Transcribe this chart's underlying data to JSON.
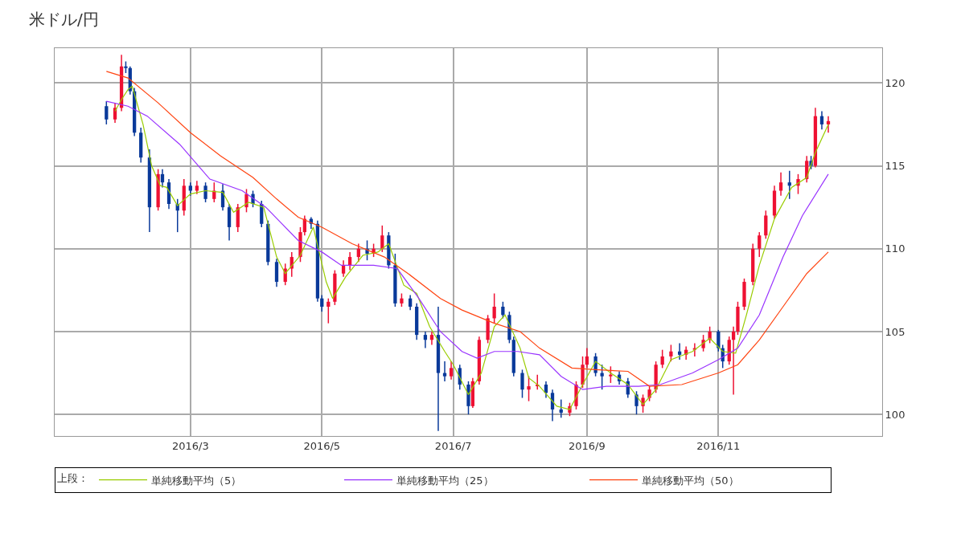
{
  "chart_data": {
    "type": "candlestick",
    "title": "米ドル/円",
    "legend_title": "上段：",
    "legend": "bottom",
    "grid": true,
    "xlim": [
      "2015-12-29",
      "2017-01-16"
    ],
    "xticks": [
      {
        "value": "2016-03-01",
        "label": "2016/3"
      },
      {
        "value": "2016-05-01",
        "label": "2016/5"
      },
      {
        "value": "2016-07-01",
        "label": "2016/7"
      },
      {
        "value": "2016-09-01",
        "label": "2016/9"
      },
      {
        "value": "2016-11-01",
        "label": "2016/11"
      }
    ],
    "ylim": [
      98.7,
      122.1
    ],
    "yticks": [
      100,
      105,
      110,
      115,
      120
    ],
    "colors": [
      "#0a3a9a",
      "#ee1133",
      "#ee1133",
      "#0a3a9a",
      "#0a3a9a",
      "#0a3a9a",
      "#0a3a9a",
      "#0a3a9a",
      "#ee1133",
      "#0a3a9a",
      "#0a3a9a",
      "#0a3a9a",
      "#ee1133",
      "#0a3a9a",
      "#ee1133",
      "#0a3a9a",
      "#ee1133",
      "#0a3a9a",
      "#0a3a9a",
      "#ee1133",
      "#ee1133",
      "#0a3a9a",
      "#0a3a9a",
      "#0a3a9a",
      "#0a3a9a",
      "#ee1133",
      "#ee1133",
      "#ee1133",
      "#ee1133",
      "#0a3a9a",
      "#0a3a9a",
      "#0a3a9a",
      "#ee1133",
      "#ee1133",
      "#ee1133",
      "#ee1133",
      "#ee1133",
      "#0a3a9a",
      "#ee1133",
      "#ee1133",
      "#0a3a9a",
      "#0a3a9a",
      "#ee1133",
      "#0a3a9a",
      "#0a3a9a",
      "#0a3a9a",
      "#ee1133",
      "#0a3a9a",
      "#0a3a9a",
      "#ee1133",
      "#0a3a9a",
      "#0a3a9a",
      "#ee1133",
      "#ee1133",
      "#ee1133",
      "#ee1133",
      "#0a3a9a",
      "#0a3a9a",
      "#0a3a9a",
      "#0a3a9a",
      "#ee1133",
      "#ee1133",
      "#0a3a9a",
      "#0a3a9a",
      "#0a3a9a",
      "#ee1133",
      "#ee1133",
      "#ee1133",
      "#ee1133",
      "#0a3a9a",
      "#0a3a9a",
      "#ee1133",
      "#0a3a9a",
      "#0a3a9a",
      "#0a3a9a",
      "#ee1133",
      "#ee1133",
      "#ee1133",
      "#ee1133",
      "#ee1133",
      "#0a3a9a",
      "#ee1133",
      "#ee1133",
      "#ee1133",
      "#ee1133",
      "#0a3a9a",
      "#0a3a9a",
      "#ee1133",
      "#ee1133",
      "#ee1133",
      "#ee1133",
      "#ee1133",
      "#ee1133",
      "#ee1133",
      "#ee1133",
      "#ee1133",
      "#0a3a9a",
      "#ee1133",
      "#ee1133",
      "#0a3a9a",
      "#ee1133",
      "#0a3a9a",
      "#ee1133"
    ],
    "x": [
      "2016-01-22",
      "2016-01-26",
      "2016-01-29",
      "2016-01-31",
      "2016-02-02",
      "2016-02-04",
      "2016-02-07",
      "2016-02-11",
      "2016-02-15",
      "2016-02-17",
      "2016-02-20",
      "2016-02-24",
      "2016-02-27",
      "2016-03-01",
      "2016-03-04",
      "2016-03-08",
      "2016-03-12",
      "2016-03-16",
      "2016-03-19",
      "2016-03-23",
      "2016-03-27",
      "2016-03-30",
      "2016-04-03",
      "2016-04-06",
      "2016-04-10",
      "2016-04-14",
      "2016-04-17",
      "2016-04-21",
      "2016-04-23",
      "2016-04-26",
      "2016-04-29",
      "2016-05-01",
      "2016-05-04",
      "2016-05-07",
      "2016-05-11",
      "2016-05-14",
      "2016-05-18",
      "2016-05-22",
      "2016-05-25",
      "2016-05-29",
      "2016-06-01",
      "2016-06-04",
      "2016-06-07",
      "2016-06-11",
      "2016-06-14",
      "2016-06-18",
      "2016-06-21",
      "2016-06-24",
      "2016-06-27",
      "2016-06-30",
      "2016-07-04",
      "2016-07-08",
      "2016-07-10",
      "2016-07-13",
      "2016-07-17",
      "2016-07-20",
      "2016-07-24",
      "2016-07-27",
      "2016-07-29",
      "2016-08-02",
      "2016-08-05",
      "2016-08-09",
      "2016-08-13",
      "2016-08-16",
      "2016-08-20",
      "2016-08-24",
      "2016-08-27",
      "2016-08-30",
      "2016-09-01",
      "2016-09-05",
      "2016-09-08",
      "2016-09-12",
      "2016-09-16",
      "2016-09-20",
      "2016-09-24",
      "2016-09-27",
      "2016-09-30",
      "2016-10-03",
      "2016-10-06",
      "2016-10-10",
      "2016-10-14",
      "2016-10-17",
      "2016-10-21",
      "2016-10-25",
      "2016-10-28",
      "2016-11-01",
      "2016-11-03",
      "2016-11-06",
      "2016-11-08",
      "2016-11-10",
      "2016-11-13",
      "2016-11-17",
      "2016-11-20",
      "2016-11-23",
      "2016-11-27",
      "2016-11-30",
      "2016-12-04",
      "2016-12-08",
      "2016-12-12",
      "2016-12-14",
      "2016-12-16",
      "2016-12-19",
      "2016-12-22"
    ],
    "ohlc": [
      [
        118.6,
        118.9,
        117.5,
        117.8
      ],
      [
        117.8,
        118.8,
        117.6,
        118.5
      ],
      [
        118.5,
        121.7,
        118.3,
        121.0
      ],
      [
        121.0,
        121.3,
        120.6,
        120.9
      ],
      [
        120.9,
        121.0,
        119.3,
        119.5
      ],
      [
        119.5,
        119.7,
        116.8,
        117.0
      ],
      [
        117.0,
        117.3,
        115.2,
        115.5
      ],
      [
        115.5,
        116.0,
        111.0,
        112.5
      ],
      [
        112.5,
        114.8,
        112.3,
        114.5
      ],
      [
        114.5,
        114.8,
        113.7,
        114.0
      ],
      [
        114.0,
        114.2,
        112.4,
        112.7
      ],
      [
        112.7,
        113.0,
        111.0,
        112.3
      ],
      [
        112.3,
        114.2,
        112.0,
        113.8
      ],
      [
        113.8,
        114.0,
        113.2,
        113.5
      ],
      [
        113.5,
        114.1,
        113.3,
        113.8
      ],
      [
        113.8,
        114.0,
        112.8,
        113.0
      ],
      [
        113.0,
        114.0,
        112.8,
        113.5
      ],
      [
        113.5,
        113.9,
        112.3,
        112.5
      ],
      [
        112.5,
        112.7,
        110.5,
        111.3
      ],
      [
        111.3,
        112.7,
        111.0,
        112.5
      ],
      [
        112.5,
        113.6,
        112.2,
        113.3
      ],
      [
        113.3,
        113.5,
        112.5,
        112.7
      ],
      [
        112.7,
        112.9,
        111.3,
        111.5
      ],
      [
        111.5,
        111.7,
        109.0,
        109.2
      ],
      [
        109.2,
        109.4,
        107.7,
        108.0
      ],
      [
        108.0,
        109.1,
        107.8,
        108.8
      ],
      [
        108.8,
        109.8,
        108.3,
        109.5
      ],
      [
        109.5,
        111.3,
        109.2,
        111.0
      ],
      [
        111.0,
        112.0,
        110.8,
        111.8
      ],
      [
        111.8,
        111.9,
        111.2,
        111.5
      ],
      [
        111.5,
        111.7,
        106.8,
        107.0
      ],
      [
        107.0,
        107.2,
        106.2,
        106.5
      ],
      [
        106.5,
        107.0,
        105.5,
        106.8
      ],
      [
        106.8,
        108.7,
        106.6,
        108.5
      ],
      [
        108.5,
        109.3,
        108.3,
        109.0
      ],
      [
        109.0,
        109.8,
        108.7,
        109.5
      ],
      [
        109.5,
        110.3,
        109.2,
        110.0
      ],
      [
        110.0,
        110.5,
        109.3,
        109.7
      ],
      [
        109.7,
        110.3,
        109.5,
        110.0
      ],
      [
        110.0,
        111.4,
        109.8,
        110.8
      ],
      [
        110.8,
        111.0,
        108.8,
        109.0
      ],
      [
        109.0,
        109.7,
        106.5,
        106.7
      ],
      [
        106.7,
        107.3,
        106.5,
        107.0
      ],
      [
        107.0,
        107.2,
        106.3,
        106.5
      ],
      [
        106.5,
        106.7,
        104.5,
        104.8
      ],
      [
        104.8,
        105.0,
        104.0,
        104.5
      ],
      [
        104.5,
        105.0,
        104.2,
        104.8
      ],
      [
        104.8,
        106.5,
        99.0,
        102.5
      ],
      [
        102.5,
        103.2,
        102.0,
        102.3
      ],
      [
        102.3,
        103.2,
        102.1,
        102.8
      ],
      [
        102.8,
        103.0,
        101.5,
        101.8
      ],
      [
        101.8,
        102.0,
        100.0,
        100.5
      ],
      [
        100.5,
        102.2,
        100.4,
        102.0
      ],
      [
        102.0,
        104.7,
        101.8,
        104.5
      ],
      [
        104.5,
        106.0,
        104.3,
        105.8
      ],
      [
        105.8,
        107.3,
        105.5,
        106.5
      ],
      [
        106.5,
        106.8,
        105.8,
        106.0
      ],
      [
        106.0,
        106.2,
        104.3,
        104.5
      ],
      [
        104.5,
        104.7,
        102.3,
        102.5
      ],
      [
        102.5,
        102.7,
        101.0,
        101.5
      ],
      [
        101.5,
        102.3,
        100.8,
        101.7
      ],
      [
        101.7,
        102.4,
        101.5,
        101.8
      ],
      [
        101.8,
        102.0,
        101.0,
        101.3
      ],
      [
        101.3,
        101.5,
        99.6,
        100.3
      ],
      [
        100.3,
        100.9,
        99.8,
        100.1
      ],
      [
        100.1,
        100.7,
        99.9,
        100.5
      ],
      [
        100.5,
        102.0,
        100.3,
        101.8
      ],
      [
        101.8,
        103.5,
        101.6,
        103.0
      ],
      [
        103.0,
        104.0,
        102.8,
        103.5
      ],
      [
        103.5,
        103.7,
        102.3,
        102.5
      ],
      [
        102.5,
        103.0,
        101.5,
        102.3
      ],
      [
        102.3,
        102.9,
        101.9,
        102.4
      ],
      [
        102.4,
        102.6,
        101.8,
        102.0
      ],
      [
        102.0,
        102.2,
        101.0,
        101.2
      ],
      [
        101.2,
        101.4,
        100.0,
        100.5
      ],
      [
        100.5,
        101.2,
        100.1,
        101.0
      ],
      [
        101.0,
        101.7,
        100.8,
        101.5
      ],
      [
        101.5,
        103.2,
        101.3,
        103.0
      ],
      [
        103.0,
        103.9,
        102.8,
        103.5
      ],
      [
        103.5,
        104.2,
        103.2,
        103.8
      ],
      [
        103.8,
        104.3,
        103.3,
        103.6
      ],
      [
        103.6,
        104.1,
        103.3,
        103.9
      ],
      [
        103.9,
        104.3,
        103.5,
        104.0
      ],
      [
        104.0,
        104.8,
        103.8,
        104.5
      ],
      [
        104.5,
        105.3,
        104.3,
        105.0
      ],
      [
        105.0,
        105.1,
        103.8,
        104.0
      ],
      [
        104.0,
        104.2,
        102.8,
        103.2
      ],
      [
        103.2,
        104.7,
        103.0,
        104.5
      ],
      [
        104.5,
        105.3,
        101.2,
        105.0
      ],
      [
        105.0,
        106.8,
        104.8,
        106.5
      ],
      [
        106.5,
        108.2,
        106.3,
        108.0
      ],
      [
        108.0,
        110.3,
        107.8,
        110.0
      ],
      [
        110.0,
        111.0,
        109.5,
        110.8
      ],
      [
        110.8,
        112.3,
        110.6,
        112.0
      ],
      [
        112.0,
        113.8,
        111.8,
        113.5
      ],
      [
        113.5,
        114.6,
        113.2,
        114.0
      ],
      [
        114.0,
        114.7,
        113.0,
        113.8
      ],
      [
        113.8,
        114.5,
        113.3,
        114.2
      ],
      [
        114.2,
        115.6,
        114.0,
        115.3
      ],
      [
        115.3,
        115.6,
        114.8,
        115.0
      ],
      [
        115.0,
        118.5,
        114.9,
        118.0
      ],
      [
        118.0,
        118.3,
        117.2,
        117.5
      ],
      [
        117.5,
        118.0,
        117.0,
        117.7
      ]
    ],
    "series": [
      {
        "type": "line",
        "name": "単純移動平均（5）",
        "color": "#99cc00",
        "x": [
          "2016-01-26",
          "2016-01-29",
          "2016-02-01",
          "2016-02-03",
          "2016-02-08",
          "2016-02-12",
          "2016-02-16",
          "2016-02-19",
          "2016-02-24",
          "2016-03-01",
          "2016-03-08",
          "2016-03-16",
          "2016-03-21",
          "2016-03-28",
          "2016-04-04",
          "2016-04-10",
          "2016-04-14",
          "2016-04-21",
          "2016-04-27",
          "2016-05-03",
          "2016-05-06",
          "2016-05-12",
          "2016-05-20",
          "2016-05-27",
          "2016-06-01",
          "2016-06-08",
          "2016-06-14",
          "2016-06-20",
          "2016-06-27",
          "2016-07-01",
          "2016-07-08",
          "2016-07-14",
          "2016-07-20",
          "2016-07-25",
          "2016-08-01",
          "2016-08-05",
          "2016-08-10",
          "2016-08-18",
          "2016-08-24",
          "2016-08-30",
          "2016-09-05",
          "2016-09-12",
          "2016-09-20",
          "2016-09-27",
          "2016-10-03",
          "2016-10-10",
          "2016-10-20",
          "2016-10-28",
          "2016-11-03",
          "2016-11-09",
          "2016-11-14",
          "2016-11-20",
          "2016-11-27",
          "2016-12-05",
          "2016-12-12",
          "2016-12-16",
          "2016-12-22"
        ],
        "values": [
          118.3,
          119.0,
          119.6,
          119.8,
          117.5,
          115.0,
          113.8,
          113.7,
          112.6,
          113.3,
          113.5,
          113.4,
          112.2,
          112.8,
          112.5,
          109.5,
          108.5,
          109.6,
          111.3,
          108.0,
          107.0,
          108.3,
          109.6,
          109.8,
          110.3,
          107.8,
          107.3,
          105.3,
          103.8,
          103.0,
          101.2,
          102.5,
          105.3,
          106.0,
          104.0,
          102.2,
          101.7,
          100.5,
          100.3,
          101.8,
          103.2,
          102.5,
          101.8,
          100.6,
          101.5,
          103.3,
          103.8,
          104.6,
          103.8,
          103.7,
          106.0,
          109.0,
          111.8,
          113.7,
          114.3,
          115.8,
          117.5
        ]
      },
      {
        "type": "line",
        "name": "単純移動平均（25）",
        "color": "#9933ff",
        "x": [
          "2016-01-22",
          "2016-02-01",
          "2016-02-10",
          "2016-02-25",
          "2016-03-10",
          "2016-03-25",
          "2016-04-05",
          "2016-04-20",
          "2016-05-01",
          "2016-05-10",
          "2016-05-25",
          "2016-06-05",
          "2016-06-15",
          "2016-06-25",
          "2016-07-05",
          "2016-07-12",
          "2016-07-20",
          "2016-07-31",
          "2016-08-10",
          "2016-08-20",
          "2016-08-30",
          "2016-09-10",
          "2016-09-25",
          "2016-10-05",
          "2016-10-20",
          "2016-11-01",
          "2016-11-10",
          "2016-11-20",
          "2016-12-01",
          "2016-12-10",
          "2016-12-22"
        ],
        "values": [
          118.9,
          118.6,
          118.0,
          116.3,
          114.2,
          113.5,
          112.5,
          110.5,
          109.8,
          109.0,
          109.0,
          108.8,
          107.0,
          105.0,
          103.8,
          103.4,
          103.8,
          103.8,
          103.6,
          102.3,
          101.5,
          101.7,
          101.7,
          101.8,
          102.5,
          103.3,
          104.0,
          106.0,
          109.5,
          112.0,
          114.5
        ]
      },
      {
        "type": "line",
        "name": "単純移動平均（50）",
        "color": "#ff4411",
        "x": [
          "2016-01-22",
          "2016-02-01",
          "2016-02-15",
          "2016-03-01",
          "2016-03-15",
          "2016-03-30",
          "2016-04-10",
          "2016-04-20",
          "2016-05-01",
          "2016-05-15",
          "2016-05-30",
          "2016-06-10",
          "2016-06-25",
          "2016-07-05",
          "2016-07-20",
          "2016-08-01",
          "2016-08-10",
          "2016-08-25",
          "2016-09-05",
          "2016-09-20",
          "2016-09-30",
          "2016-10-15",
          "2016-11-01",
          "2016-11-10",
          "2016-11-20",
          "2016-12-01",
          "2016-12-12",
          "2016-12-22"
        ],
        "values": [
          120.7,
          120.3,
          118.8,
          117.0,
          115.6,
          114.3,
          113.0,
          111.9,
          111.3,
          110.3,
          109.5,
          108.5,
          107.0,
          106.3,
          105.5,
          105.0,
          104.0,
          102.8,
          102.7,
          102.6,
          101.7,
          101.8,
          102.5,
          103.0,
          104.5,
          106.5,
          108.5,
          109.8
        ]
      }
    ]
  }
}
